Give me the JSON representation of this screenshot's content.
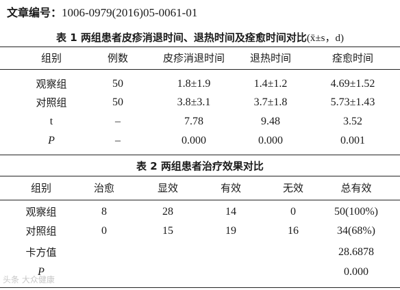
{
  "article_number": {
    "label": "文章编号：",
    "value": "1006-0979(2016)05-0061-01"
  },
  "table1": {
    "caption": "表 1   两组患者皮疹消退时间、退热时间及痊愈时间对比",
    "caption_unit": "(x̄±s，d)",
    "headers": [
      "组别",
      "例数",
      "皮疹消退时间",
      "退热时间",
      "痊愈时间"
    ],
    "rows": [
      [
        "观察组",
        "50",
        "1.8±1.9",
        "1.4±1.2",
        "4.69±1.52"
      ],
      [
        "对照组",
        "50",
        "3.8±3.1",
        "3.7±1.8",
        "5.73±1.43"
      ],
      [
        "t",
        "–",
        "7.78",
        "9.48",
        "3.52"
      ],
      [
        "P",
        "–",
        "0.000",
        "0.000",
        "0.001"
      ]
    ]
  },
  "table2": {
    "caption": "表 2   两组患者治疗效果对比",
    "headers": [
      "组别",
      "治愈",
      "显效",
      "有效",
      "无效",
      "总有效"
    ],
    "rows": [
      [
        "观察组",
        "8",
        "28",
        "14",
        "0",
        "50(100%)"
      ],
      [
        "对照组",
        "0",
        "15",
        "19",
        "16",
        "34(68%)"
      ],
      [
        "卡方值",
        "",
        "",
        "",
        "",
        "28.6878"
      ],
      [
        "P",
        "",
        "",
        "",
        "",
        "0.000"
      ]
    ]
  },
  "watermark": "头条 大众健康"
}
